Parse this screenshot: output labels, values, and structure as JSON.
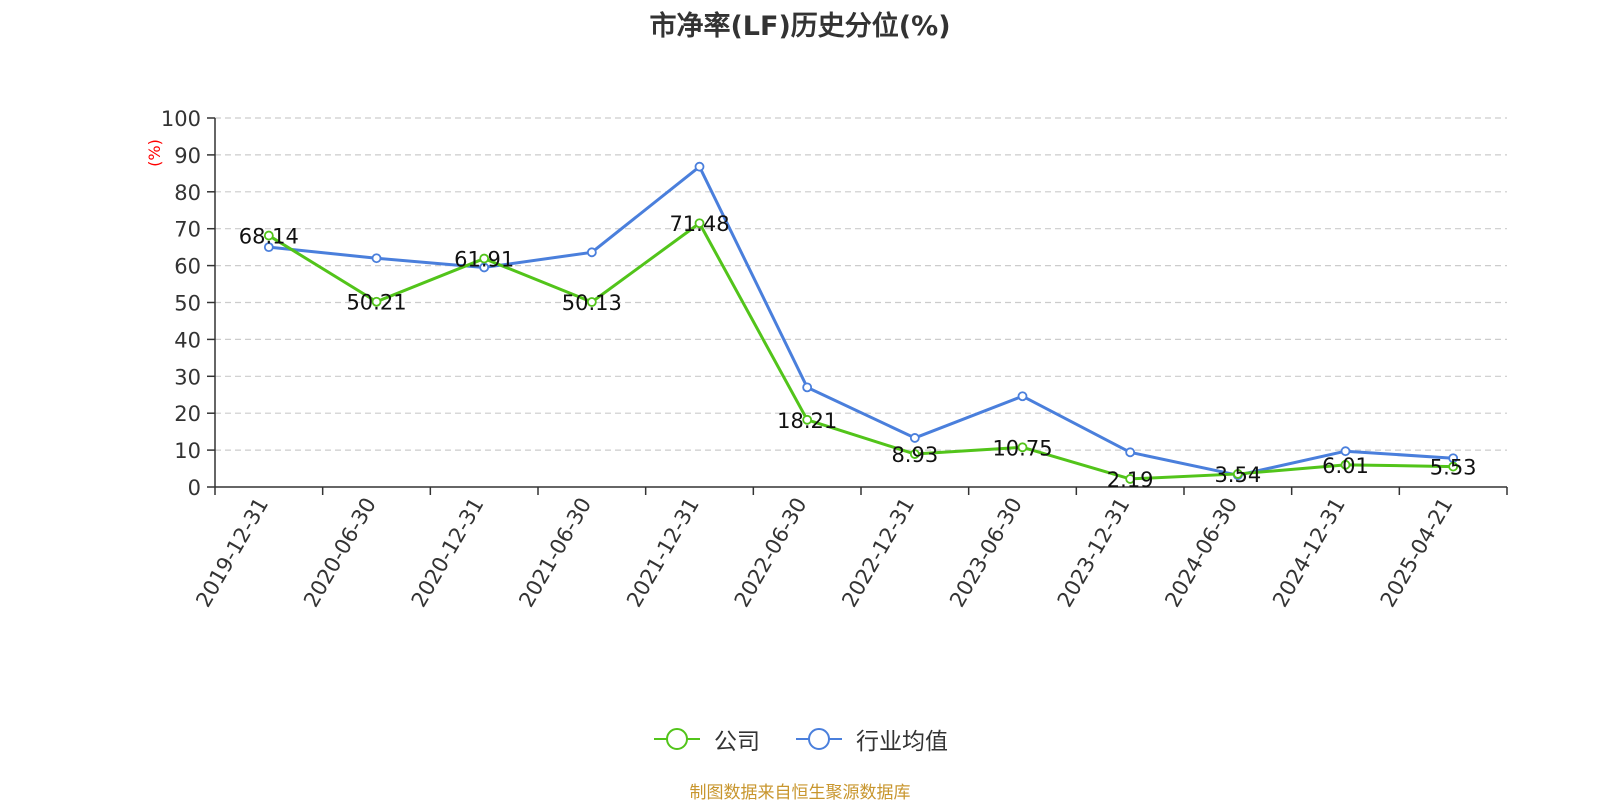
{
  "chart_data": {
    "type": "line",
    "title": "市净率(LF)历史分位(%)",
    "ylabel": "(%)",
    "ylim": [
      0,
      100
    ],
    "yticks": [
      0,
      10,
      20,
      30,
      40,
      50,
      60,
      70,
      80,
      90,
      100
    ],
    "grid": true,
    "legend_position": "bottom",
    "categories": [
      "2019-12-31",
      "2020-06-30",
      "2020-12-31",
      "2021-06-30",
      "2021-12-31",
      "2022-06-30",
      "2022-12-31",
      "2023-06-30",
      "2023-12-31",
      "2024-06-30",
      "2024-12-31",
      "2025-04-21"
    ],
    "series": [
      {
        "name": "公司",
        "color": "#52c41a",
        "values": [
          68.14,
          50.21,
          61.91,
          50.13,
          71.48,
          18.21,
          8.93,
          10.75,
          2.19,
          3.54,
          6.01,
          5.53
        ],
        "labels": [
          "68.14",
          "50.21",
          "61.91",
          "50.13",
          "71.48",
          "18.21",
          "8.93",
          "10.75",
          "2.19",
          "3.54",
          "6.01",
          "5.53"
        ]
      },
      {
        "name": "行业均值",
        "color": "#4a7fdc",
        "values": [
          65.0,
          62.0,
          59.5,
          63.6,
          86.8,
          27.0,
          13.3,
          24.6,
          9.4,
          3.2,
          9.7,
          7.8
        ]
      }
    ]
  },
  "source_note": "制图数据来自恒生聚源数据库"
}
